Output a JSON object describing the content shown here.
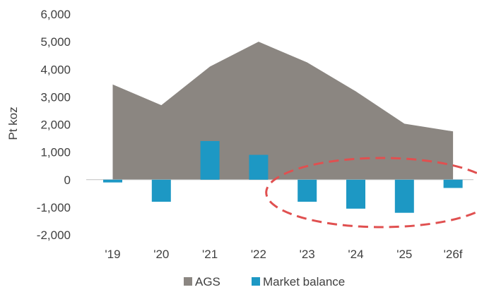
{
  "chart_data": {
    "type": "area",
    "categories": [
      "'19",
      "'20",
      "'21",
      "'22",
      "'23",
      "'24",
      "'25",
      "'26f"
    ],
    "series": [
      {
        "name": "AGS",
        "type": "area",
        "color": "#8b8681",
        "values": [
          3450,
          2700,
          4100,
          5000,
          4250,
          3200,
          2030,
          1750
        ]
      },
      {
        "name": "Market balance",
        "type": "bar",
        "color": "#1d98c4",
        "values": [
          -100,
          -800,
          1400,
          900,
          -800,
          -1050,
          -1200,
          -300
        ]
      }
    ],
    "ylabel": "Pt koz",
    "ylim": [
      -2000,
      6000
    ],
    "yticks": [
      "6,000",
      "5,000",
      "4,000",
      "3,000",
      "2,000",
      "1,000",
      "0",
      "-1,000",
      "-2,000"
    ],
    "ytick_values": [
      6000,
      5000,
      4000,
      3000,
      2000,
      1000,
      0,
      -1000,
      -2000
    ],
    "grid": false,
    "legend_placement": "bottom",
    "annotation": {
      "shape": "dashed-ellipse",
      "color": "#e05050",
      "highlights": [
        "'23",
        "'24",
        "'25",
        "'26f"
      ]
    }
  }
}
